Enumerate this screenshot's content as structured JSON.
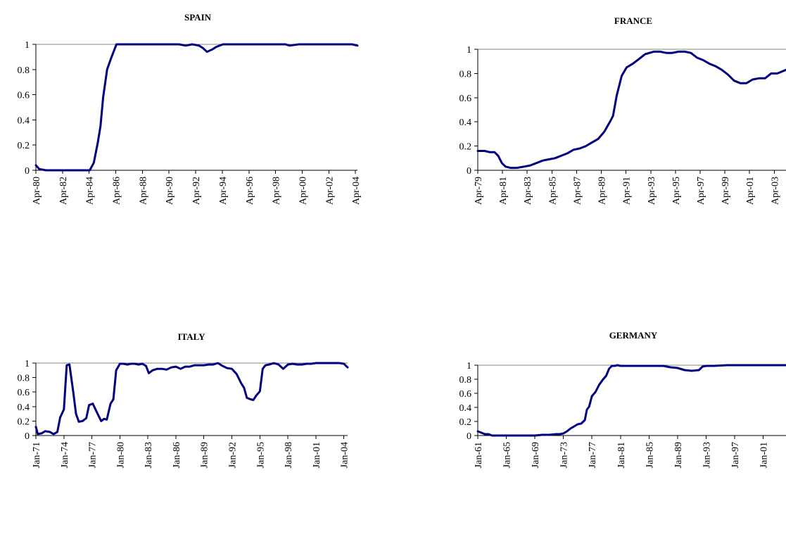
{
  "chart_data": [
    {
      "type": "line",
      "title": "SPAIN",
      "ylim": [
        0,
        1
      ],
      "yticks": [
        "0",
        "0.2",
        "0.4",
        "0.6",
        "0.8",
        "1"
      ],
      "xlim": [
        1980.25,
        2004.4
      ],
      "xtick_labels": [
        "Apr-80",
        "Apr-82",
        "Apr-84",
        "Apr-86",
        "Apr-88",
        "Apr-90",
        "Apr-92",
        "Apr-94",
        "Apr-96",
        "Apr-98",
        "Apr-00",
        "Apr-02",
        "Apr-04"
      ],
      "xtick_values": [
        1980.25,
        1982.25,
        1984.25,
        1986.25,
        1988.25,
        1990.25,
        1992.25,
        1994.25,
        1996.25,
        1998.25,
        2000.25,
        2002.25,
        2004.25
      ],
      "grid": false,
      "color": "#000080",
      "series": [
        {
          "x": [
            1980.25,
            1980.5,
            1981.0,
            1981.5,
            1982.5,
            1983.5,
            1984.3,
            1984.6,
            1984.9,
            1985.1,
            1985.3,
            1985.6,
            1985.9,
            1986.3,
            1987.0,
            1988.0,
            1990.0,
            1991.0,
            1991.5,
            1992.0,
            1992.5,
            1992.8,
            1993.1,
            1993.5,
            1993.8,
            1994.3,
            1995.0,
            1996.0,
            1998.0,
            1999.0,
            1999.3,
            2000.0,
            2001.0,
            2002.0,
            2003.0,
            2004.0,
            2004.4
          ],
          "y": [
            0.04,
            0.01,
            0.0,
            0.0,
            0.0,
            0.0,
            0.0,
            0.06,
            0.22,
            0.35,
            0.58,
            0.8,
            0.89,
            1.0,
            1.0,
            1.0,
            1.0,
            1.0,
            0.99,
            1.0,
            0.99,
            0.97,
            0.94,
            0.96,
            0.98,
            1.0,
            1.0,
            1.0,
            1.0,
            1.0,
            0.99,
            1.0,
            1.0,
            1.0,
            1.0,
            1.0,
            0.99
          ]
        }
      ]
    },
    {
      "type": "line",
      "title": "FRANCE",
      "ylim": [
        0,
        1
      ],
      "yticks": [
        "0",
        "0.2",
        "0.4",
        "0.6",
        "0.8",
        "1"
      ],
      "xlim": [
        1979.25,
        2004.2
      ],
      "xtick_labels": [
        "Apr-79",
        "Apr-81",
        "Apr-83",
        "Apr-85",
        "Apr-87",
        "Apr-89",
        "Apr-91",
        "Apr-93",
        "Apr-95",
        "Apr-97",
        "Apr-99",
        "Apr-01",
        "Apr-03"
      ],
      "xtick_values": [
        1979.25,
        1981.25,
        1983.25,
        1985.25,
        1987.25,
        1989.25,
        1991.25,
        1993.25,
        1995.25,
        1997.25,
        1999.25,
        2001.25,
        2003.25
      ],
      "grid": false,
      "color": "#000080",
      "series": [
        {
          "x": [
            1979.25,
            1979.8,
            1980.2,
            1980.6,
            1980.9,
            1981.2,
            1981.5,
            1981.9,
            1982.4,
            1983.0,
            1983.5,
            1984.0,
            1984.5,
            1985.0,
            1985.5,
            1986.0,
            1986.5,
            1987.0,
            1987.5,
            1988.0,
            1988.5,
            1989.0,
            1989.5,
            1990.0,
            1990.2,
            1990.5,
            1990.9,
            1991.3,
            1991.8,
            1992.3,
            1992.8,
            1993.5,
            1994.0,
            1994.5,
            1995.0,
            1995.5,
            1996.0,
            1996.5,
            1997.0,
            1997.5,
            1998.0,
            1998.5,
            1999.0,
            1999.5,
            2000.0,
            2000.5,
            2001.0,
            2001.5,
            2002.0,
            2002.5,
            2003.0,
            2003.5,
            2004.2
          ],
          "y": [
            0.16,
            0.16,
            0.15,
            0.15,
            0.12,
            0.06,
            0.03,
            0.02,
            0.02,
            0.03,
            0.04,
            0.06,
            0.08,
            0.09,
            0.1,
            0.12,
            0.14,
            0.17,
            0.18,
            0.2,
            0.23,
            0.26,
            0.32,
            0.41,
            0.45,
            0.62,
            0.78,
            0.85,
            0.88,
            0.92,
            0.96,
            0.98,
            0.98,
            0.97,
            0.97,
            0.98,
            0.98,
            0.97,
            0.93,
            0.91,
            0.88,
            0.86,
            0.83,
            0.79,
            0.74,
            0.72,
            0.72,
            0.75,
            0.76,
            0.76,
            0.8,
            0.8,
            0.83
          ]
        }
      ]
    },
    {
      "type": "line",
      "title": "ITALY",
      "ylim": [
        0,
        1
      ],
      "yticks": [
        "0",
        "0.2",
        "0.4",
        "0.6",
        "0.8",
        "1"
      ],
      "xlim": [
        1971.0,
        2004.4
      ],
      "xtick_labels": [
        "Jan-71",
        "Jan-74",
        "Jan-77",
        "Jan-80",
        "Jan-83",
        "Jan-86",
        "Jan-89",
        "Jan-92",
        "Jan-95",
        "Jan-98",
        "Jan-01",
        "Jan-04"
      ],
      "xtick_values": [
        1971,
        1974,
        1977,
        1980,
        1983,
        1986,
        1989,
        1992,
        1995,
        1998,
        2001,
        2004
      ],
      "grid": false,
      "color": "#000080",
      "series": [
        {
          "x": [
            1971.0,
            1971.2,
            1971.6,
            1972.0,
            1972.5,
            1972.9,
            1973.3,
            1973.6,
            1974.0,
            1974.3,
            1974.6,
            1975.0,
            1975.3,
            1975.6,
            1976.0,
            1976.4,
            1976.7,
            1977.1,
            1977.5,
            1978.0,
            1978.3,
            1978.6,
            1979.0,
            1979.3,
            1979.6,
            1980.0,
            1980.4,
            1980.8,
            1981.2,
            1981.6,
            1982.0,
            1982.4,
            1982.8,
            1983.1,
            1983.5,
            1984.0,
            1984.5,
            1985.0,
            1985.5,
            1986.0,
            1986.5,
            1987.0,
            1987.5,
            1988.0,
            1988.5,
            1989.0,
            1989.5,
            1990.0,
            1990.5,
            1991.0,
            1991.5,
            1992.0,
            1992.5,
            1993.0,
            1993.3,
            1993.6,
            1994.0,
            1994.3,
            1994.6,
            1995.0,
            1995.3,
            1995.6,
            1996.0,
            1996.5,
            1997.0,
            1997.5,
            1998.0,
            1998.5,
            1999.0,
            1999.5,
            2000.0,
            2000.5,
            2001.0,
            2001.5,
            2002.0,
            2002.5,
            2003.0,
            2003.5,
            2004.0,
            2004.4
          ],
          "y": [
            0.12,
            0.02,
            0.03,
            0.06,
            0.05,
            0.02,
            0.05,
            0.25,
            0.36,
            0.97,
            0.98,
            0.6,
            0.3,
            0.19,
            0.2,
            0.24,
            0.42,
            0.44,
            0.33,
            0.2,
            0.23,
            0.22,
            0.44,
            0.5,
            0.9,
            0.99,
            0.99,
            0.98,
            0.99,
            0.99,
            0.98,
            0.99,
            0.96,
            0.86,
            0.9,
            0.92,
            0.92,
            0.91,
            0.94,
            0.95,
            0.92,
            0.95,
            0.95,
            0.97,
            0.97,
            0.97,
            0.98,
            0.98,
            1.0,
            0.96,
            0.93,
            0.92,
            0.85,
            0.72,
            0.66,
            0.52,
            0.5,
            0.49,
            0.55,
            0.61,
            0.92,
            0.97,
            0.98,
            1.0,
            0.98,
            0.92,
            0.98,
            0.99,
            0.98,
            0.98,
            0.99,
            0.99,
            1.0,
            1.0,
            1.0,
            1.0,
            1.0,
            1.0,
            0.99,
            0.94
          ]
        }
      ]
    },
    {
      "type": "line",
      "title": "GERMANY",
      "ylim": [
        0,
        1
      ],
      "yticks": [
        "0",
        "0.2",
        "0.4",
        "0.6",
        "0.8",
        "1"
      ],
      "xlim": [
        1961.0,
        2004.2
      ],
      "xtick_labels": [
        "Jan-61",
        "Jan-65",
        "Jan-69",
        "Jan-73",
        "Jan-77",
        "Jan-81",
        "Jan-85",
        "Jan-89",
        "Jan-93",
        "Jan-97",
        "Jan-01"
      ],
      "xtick_values": [
        1961,
        1965,
        1969,
        1973,
        1977,
        1981,
        1985,
        1989,
        1993,
        1997,
        2001
      ],
      "grid": false,
      "color": "#000080",
      "series": [
        {
          "x": [
            1961.0,
            1961.5,
            1962.0,
            1962.5,
            1963.0,
            1964.0,
            1966.0,
            1968.0,
            1969.0,
            1970.0,
            1971.0,
            1972.0,
            1972.5,
            1973.0,
            1973.5,
            1974.0,
            1974.5,
            1975.0,
            1975.5,
            1976.0,
            1976.3,
            1976.6,
            1977.0,
            1977.5,
            1978.0,
            1978.5,
            1979.0,
            1979.4,
            1979.8,
            1980.2,
            1980.6,
            1981.0,
            1982.0,
            1984.0,
            1986.0,
            1987.0,
            1988.0,
            1989.0,
            1990.0,
            1991.0,
            1992.0,
            1992.5,
            1993.0,
            1994.0,
            1996.0,
            2000.0,
            2004.2
          ],
          "y": [
            0.06,
            0.04,
            0.02,
            0.02,
            0.0,
            0.0,
            0.0,
            0.0,
            0.0,
            0.01,
            0.01,
            0.02,
            0.02,
            0.03,
            0.06,
            0.1,
            0.13,
            0.16,
            0.17,
            0.22,
            0.37,
            0.41,
            0.56,
            0.62,
            0.72,
            0.79,
            0.85,
            0.95,
            0.99,
            0.99,
            1.0,
            0.99,
            0.99,
            0.99,
            0.99,
            0.99,
            0.97,
            0.96,
            0.93,
            0.92,
            0.93,
            0.98,
            0.99,
            0.99,
            1.0,
            1.0,
            1.0
          ]
        }
      ]
    }
  ]
}
